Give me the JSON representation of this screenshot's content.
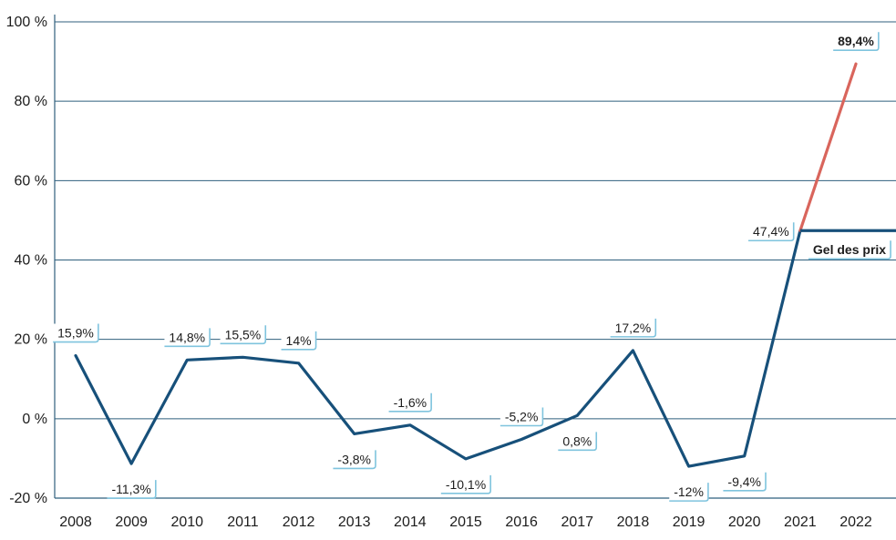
{
  "chart_data": {
    "type": "line",
    "categories": [
      "2008",
      "2009",
      "2010",
      "2011",
      "2012",
      "2013",
      "2014",
      "2015",
      "2016",
      "2017",
      "2018",
      "2019",
      "2020",
      "2021",
      "2022"
    ],
    "series": [
      {
        "name": "main",
        "values": [
          15.9,
          -11.3,
          14.8,
          15.5,
          14,
          -3.8,
          -1.6,
          -10.1,
          -5.2,
          0.8,
          17.2,
          -12,
          -9.4,
          47.4,
          null
        ],
        "color": "#17507a"
      },
      {
        "name": "without_freeze",
        "values": [
          null,
          null,
          null,
          null,
          null,
          null,
          null,
          null,
          null,
          null,
          null,
          null,
          null,
          47.4,
          89.4
        ],
        "color": "#d9655c"
      }
    ],
    "data_labels": [
      "15,9%",
      "-11,3%",
      "14,8%",
      "15,5%",
      "14%",
      "-3,8%",
      "-1,6%",
      "-10,1%",
      "-5,2%",
      "0,8%",
      "17,2%",
      "-12%",
      "-9,4%",
      "47,4%",
      "89,4%"
    ],
    "label_positions": [
      "above",
      "below",
      "above",
      "above",
      "above",
      "below",
      "above",
      "below",
      "above",
      "below",
      "above",
      "below",
      "below",
      "left",
      "above"
    ],
    "freeze": {
      "value": 47.4,
      "label": "Gel des prix"
    },
    "yticks": [
      100,
      80,
      60,
      40,
      20,
      0,
      -20
    ],
    "ytick_labels": [
      "100 %",
      "80 %",
      "60 %",
      "40 %",
      "20 %",
      "0 %",
      "-20 %"
    ],
    "ylim": [
      -20,
      100
    ],
    "title": "",
    "xlabel": "",
    "ylabel": ""
  }
}
